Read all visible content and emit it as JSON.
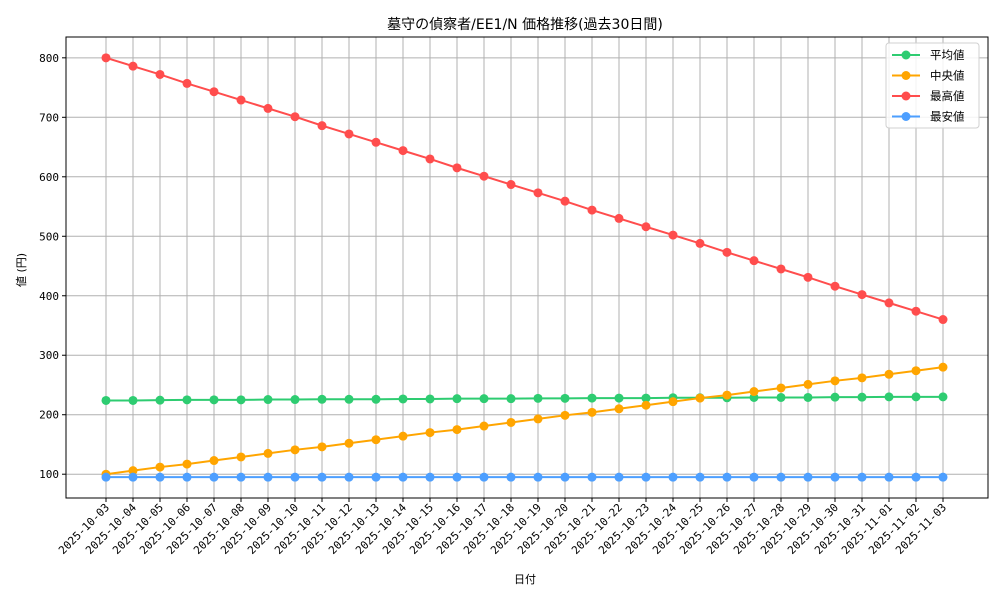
{
  "chart_data": {
    "type": "line",
    "title": "墓守の偵察者/EE1/N 価格推移(過去30日間)",
    "xlabel": "日付",
    "ylabel": "値 (円)",
    "ylim": [
      60,
      835
    ],
    "yticks": [
      100,
      200,
      300,
      400,
      500,
      600,
      700,
      800
    ],
    "grid": true,
    "legend_position": "upper right",
    "categories": [
      "2025-10-03",
      "2025-10-04",
      "2025-10-05",
      "2025-10-06",
      "2025-10-07",
      "2025-10-08",
      "2025-10-09",
      "2025-10-10",
      "2025-10-11",
      "2025-10-12",
      "2025-10-13",
      "2025-10-14",
      "2025-10-15",
      "2025-10-16",
      "2025-10-17",
      "2025-10-18",
      "2025-10-19",
      "2025-10-20",
      "2025-10-21",
      "2025-10-22",
      "2025-10-23",
      "2025-10-24",
      "2025-10-25",
      "2025-10-26",
      "2025-10-27",
      "2025-10-28",
      "2025-10-29",
      "2025-10-30",
      "2025-10-31",
      "2025-11-01",
      "2025-11-02",
      "2025-11-03"
    ],
    "series": [
      {
        "name": "平均値",
        "color": "#2ecc71",
        "values": [
          224,
          224,
          224.5,
          225,
          225,
          225,
          225.5,
          225.5,
          226,
          226,
          226,
          226.5,
          226.5,
          227,
          227,
          227,
          227.5,
          227.5,
          228,
          228,
          228,
          228.5,
          228.5,
          228.5,
          229,
          229,
          229,
          229.5,
          229.5,
          230,
          230,
          230
        ]
      },
      {
        "name": "中央値",
        "color": "#ffa500",
        "values": [
          100,
          106,
          112,
          117,
          123,
          129,
          135,
          141,
          146,
          152,
          158,
          164,
          170,
          175,
          181,
          187,
          193,
          199,
          204,
          210,
          216,
          222,
          228,
          233,
          239,
          245,
          251,
          257,
          262,
          268,
          274,
          280
        ]
      },
      {
        "name": "最高値",
        "color": "#ff4d4d",
        "values": [
          800,
          786,
          772,
          757,
          743,
          729,
          715,
          701,
          686,
          672,
          658,
          644,
          630,
          615,
          601,
          587,
          573,
          559,
          544,
          530,
          516,
          502,
          488,
          473,
          459,
          445,
          431,
          416,
          402,
          388,
          374,
          360
        ]
      },
      {
        "name": "最安値",
        "color": "#4d9fff",
        "values": [
          95,
          95,
          95,
          95,
          95,
          95,
          95,
          95,
          95,
          95,
          95,
          95,
          95,
          95,
          95,
          95,
          95,
          95,
          95,
          95,
          95,
          95,
          95,
          95,
          95,
          95,
          95,
          95,
          95,
          95,
          95,
          95
        ]
      }
    ]
  }
}
